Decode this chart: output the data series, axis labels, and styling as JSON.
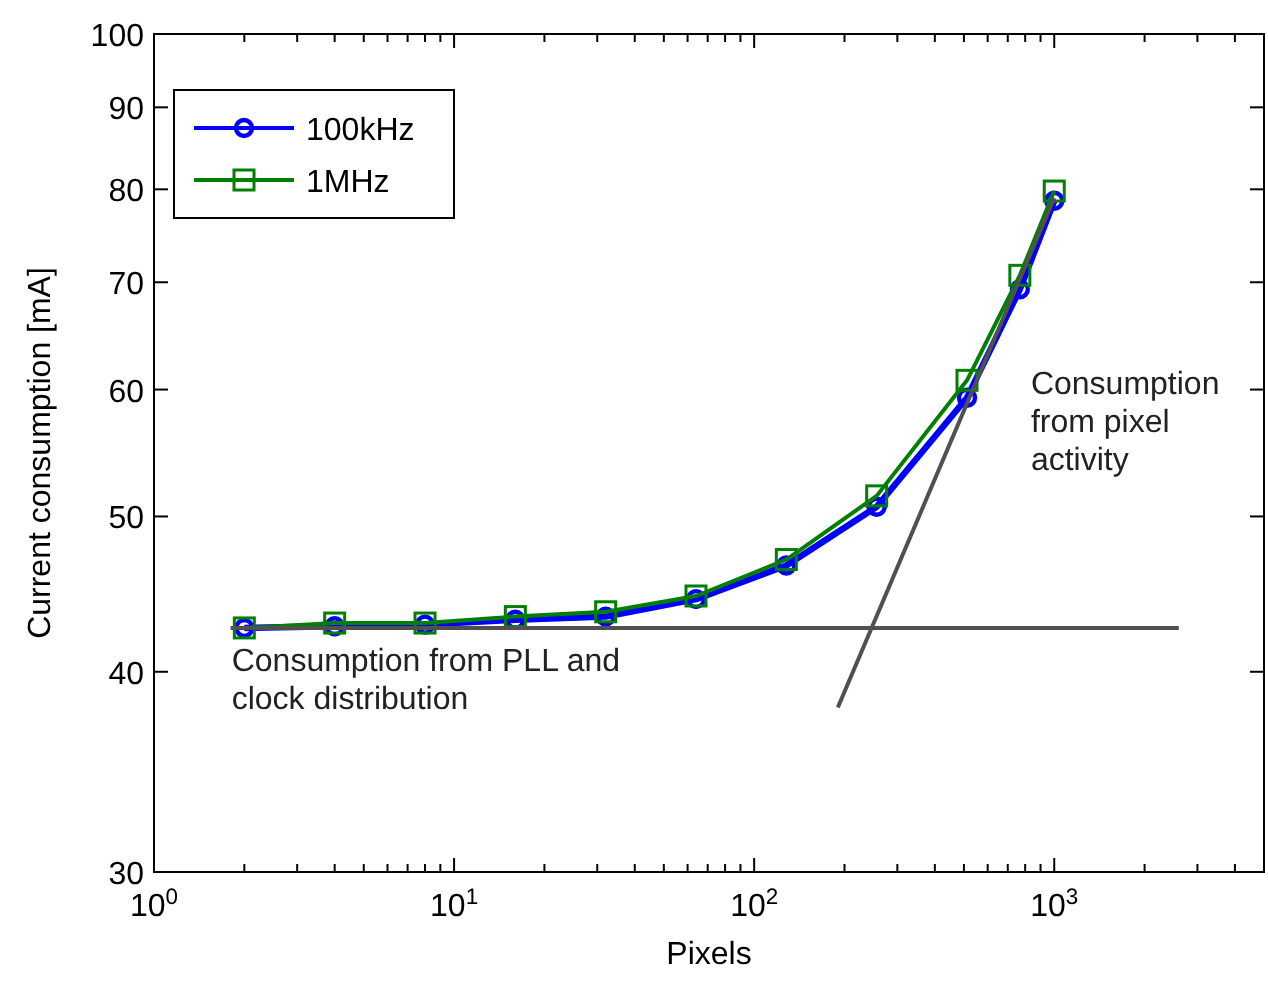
{
  "chart_data": {
    "type": "line",
    "xlabel": "Pixels",
    "ylabel": "Current consumption [mA]",
    "log": "xy",
    "legend": "top left",
    "grid": false,
    "xlim": [
      1,
      5000
    ],
    "ylim": [
      30,
      100
    ],
    "xticks": [
      {
        "value": 1,
        "label": "10$^{0}$"
      },
      {
        "value": 2,
        "label": null
      },
      {
        "value": 3,
        "label": null
      },
      {
        "value": 4,
        "label": null
      },
      {
        "value": 5,
        "label": null
      },
      {
        "value": 6,
        "label": null
      },
      {
        "value": 7,
        "label": null
      },
      {
        "value": 8,
        "label": null
      },
      {
        "value": 9,
        "label": null
      },
      {
        "value": 10,
        "label": "10$^{1}$"
      },
      {
        "value": 20,
        "label": null
      },
      {
        "value": 30,
        "label": null
      },
      {
        "value": 40,
        "label": null
      },
      {
        "value": 50,
        "label": null
      },
      {
        "value": 60,
        "label": null
      },
      {
        "value": 70,
        "label": null
      },
      {
        "value": 80,
        "label": null
      },
      {
        "value": 90,
        "label": null
      },
      {
        "value": 100,
        "label": "10$^{2}$"
      },
      {
        "value": 200,
        "label": null
      },
      {
        "value": 300,
        "label": null
      },
      {
        "value": 400,
        "label": null
      },
      {
        "value": 500,
        "label": null
      },
      {
        "value": 600,
        "label": null
      },
      {
        "value": 700,
        "label": null
      },
      {
        "value": 800,
        "label": null
      },
      {
        "value": 900,
        "label": null
      },
      {
        "value": 1000,
        "label": "10$^{3}$"
      },
      {
        "value": 2000,
        "label": null
      },
      {
        "value": 3000,
        "label": null
      },
      {
        "value": 4000,
        "label": null
      }
    ],
    "yticks": [
      30,
      40,
      50,
      60,
      70,
      80,
      90,
      100
    ],
    "x": [
      2,
      4,
      8,
      16,
      32,
      64,
      128,
      256,
      512,
      768,
      1000
    ],
    "series": [
      {
        "name": "100kHz",
        "color": "#0000ff",
        "marker": "circle",
        "values": [
          42.6,
          42.7,
          42.8,
          43.1,
          43.3,
          44.4,
          46.6,
          50.7,
          59.3,
          69.3,
          78.7
        ]
      },
      {
        "name": "1MHz",
        "color": "#008000",
        "marker": "square",
        "values": [
          42.6,
          42.9,
          42.9,
          43.3,
          43.6,
          44.6,
          47.0,
          51.5,
          60.8,
          70.7,
          79.8
        ]
      },
      {
        "type": "line",
        "color": "#505050",
        "marker": "none",
        "x": [
          1.8,
          2600
        ],
        "values": [
          42.6,
          42.6
        ]
      },
      {
        "type": "line",
        "color": "#505050",
        "marker": "none",
        "x": [
          190,
          1000
        ],
        "values": [
          38,
          79
        ]
      }
    ],
    "annotations": [
      "Consumption from PLL and\nclock distribution",
      "Consumption\nfrom pixel\nactivity"
    ]
  }
}
